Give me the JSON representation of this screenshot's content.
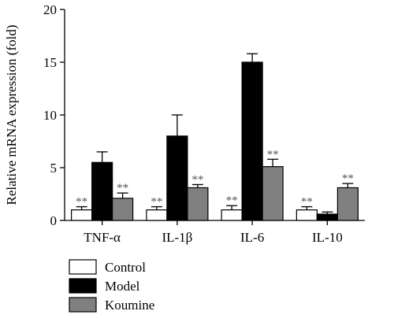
{
  "chart_data": {
    "type": "bar",
    "title": "",
    "xlabel": "",
    "ylabel": "Relative mRNA expression (fold)",
    "ylim": [
      0,
      20
    ],
    "yticks": [
      0,
      5,
      10,
      15,
      20
    ],
    "categories": [
      "TNF-α",
      "IL-1β",
      "IL-6",
      "IL-10"
    ],
    "series": [
      {
        "name": "Control",
        "color": "#ffffff",
        "values": [
          1.0,
          1.0,
          1.0,
          1.0
        ],
        "errors": [
          0.3,
          0.3,
          0.4,
          0.3
        ],
        "annotations": [
          "**",
          "**",
          "**",
          "**"
        ]
      },
      {
        "name": "Model",
        "color": "#000000",
        "values": [
          5.5,
          8.0,
          15.0,
          0.6
        ],
        "errors": [
          1.0,
          2.0,
          0.8,
          0.2
        ],
        "annotations": [
          "",
          "",
          "",
          ""
        ]
      },
      {
        "name": "Koumine",
        "color": "#808080",
        "values": [
          2.1,
          3.1,
          5.1,
          3.1
        ],
        "errors": [
          0.5,
          0.3,
          0.7,
          0.4
        ],
        "annotations": [
          "**",
          "**",
          "**",
          "**"
        ]
      }
    ],
    "legend": {
      "position": "bottom-left"
    },
    "grid": false
  }
}
